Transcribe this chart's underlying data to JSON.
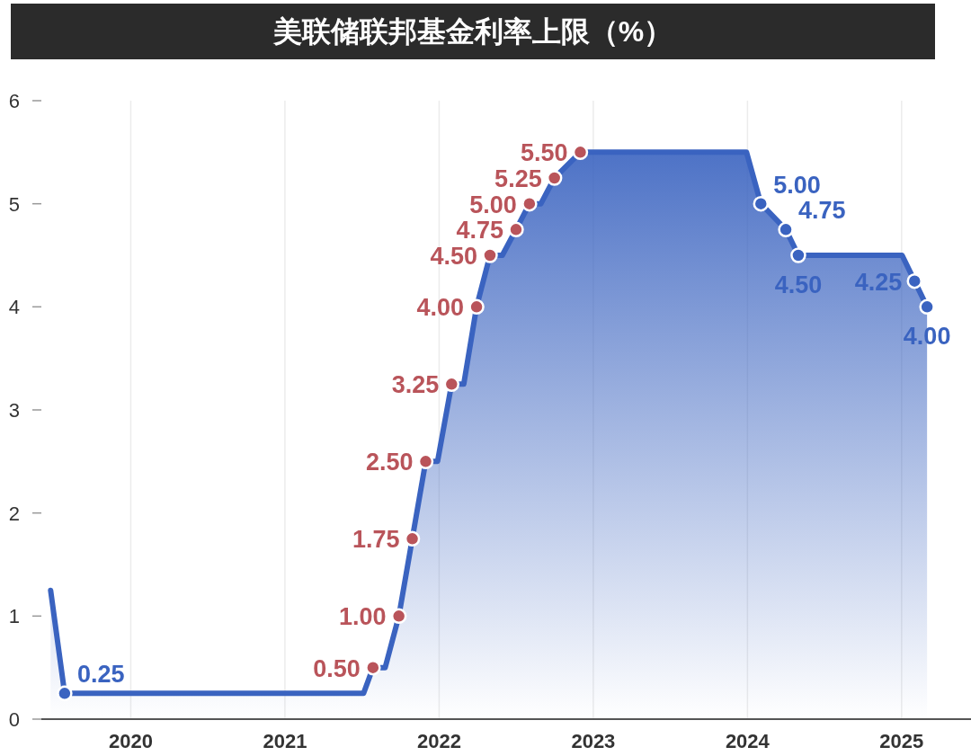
{
  "chart_data": {
    "type": "area",
    "title": "美联储联邦基金利率上限（%）",
    "xlim": [
      2019.42,
      2025.45
    ],
    "ylim": [
      0,
      6
    ],
    "yticks": [
      0,
      1,
      2,
      3,
      4,
      5,
      6
    ],
    "xticks": [
      2020,
      2021,
      2022,
      2023,
      2024,
      2025
    ],
    "grid": "x",
    "series": [
      {
        "color": "#3a63c0",
        "x": [
          2019.48,
          2019.571,
          2021.51,
          2021.571,
          2021.65,
          2021.739,
          2021.826,
          2021.913,
          2021.99,
          2022.081,
          2022.16,
          2022.243,
          2022.33,
          2022.41,
          2022.499,
          2022.586,
          2022.66,
          2022.748,
          2022.916,
          2023.994,
          2024.087,
          2024.249,
          2024.33,
          2025.003,
          2025.084,
          2025.165
        ],
        "values": [
          1.25,
          0.25,
          0.25,
          0.5,
          0.5,
          1.0,
          1.75,
          2.5,
          2.5,
          3.25,
          3.25,
          4.0,
          4.5,
          4.5,
          4.75,
          5.0,
          5.0,
          5.25,
          5.5,
          5.5,
          5.0,
          4.75,
          4.5,
          4.5,
          4.25,
          4.0
        ]
      },
      {
        "type": "scatter",
        "x": [
          2019.571,
          2021.571,
          2021.739,
          2021.826,
          2021.913,
          2022.081,
          2022.243,
          2022.33,
          2022.499,
          2022.586,
          2022.748,
          2022.916,
          2024.087,
          2024.249,
          2024.33,
          2025.084,
          2025.165
        ],
        "values": [
          0.25,
          0.5,
          1.0,
          1.75,
          2.5,
          3.25,
          4.0,
          4.5,
          4.75,
          5.0,
          5.25,
          5.5,
          5.0,
          4.75,
          4.5,
          4.25,
          4.0
        ],
        "colors": [
          "#3a63c0",
          "#b9545a",
          "#b9545a",
          "#b9545a",
          "#b9545a",
          "#b9545a",
          "#b9545a",
          "#b9545a",
          "#b9545a",
          "#b9545a",
          "#b9545a",
          "#b9545a",
          "#3a63c0",
          "#3a63c0",
          "#3a63c0",
          "#3a63c0",
          "#3a63c0"
        ],
        "value_labels": [
          "0.25",
          "0.50",
          "1.00",
          "1.75",
          "2.50",
          "3.25",
          "4.00",
          "4.50",
          "4.75",
          "5.00",
          "5.25",
          "5.50",
          "5.00",
          "4.75",
          "4.50",
          "4.25",
          "4.00"
        ]
      }
    ]
  }
}
